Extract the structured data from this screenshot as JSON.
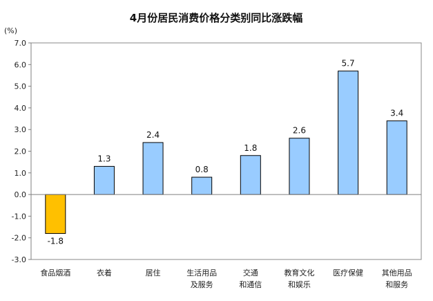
{
  "chart_data": {
    "type": "bar",
    "title": "4月份居民消费价格分类别同比涨跌幅",
    "ylabel": "(%)",
    "xlabel": "",
    "ylim": [
      -3.0,
      7.0
    ],
    "yticks": [
      "7.0",
      "6.0",
      "5.0",
      "4.0",
      "3.0",
      "2.0",
      "1.0",
      "0.0",
      "-1.0",
      "-2.0",
      "-3.0"
    ],
    "grid": false,
    "legend": "none",
    "categories": [
      [
        "食品烟酒"
      ],
      [
        "衣着"
      ],
      [
        "居住"
      ],
      [
        "生活用品",
        "及服务"
      ],
      [
        "交通",
        "和通信"
      ],
      [
        "教育文化",
        "和娱乐"
      ],
      [
        "医疗保健"
      ],
      [
        "其他用品",
        "和服务"
      ]
    ],
    "values": [
      -1.8,
      1.3,
      2.4,
      0.8,
      1.8,
      2.6,
      5.7,
      3.4
    ],
    "value_labels": [
      "-1.8",
      "1.3",
      "2.4",
      "0.8",
      "1.8",
      "2.6",
      "5.7",
      "3.4"
    ],
    "colors": {
      "positive": "#99CCFF",
      "negative": "#FFC000",
      "bar_edge": "#000000",
      "axis": "#7F7F7F",
      "frame": "#888888"
    }
  }
}
